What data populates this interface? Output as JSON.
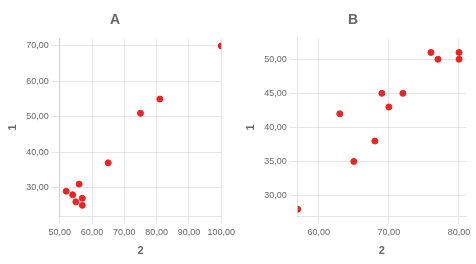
{
  "chart_data": [
    {
      "type": "scatter",
      "title": "A",
      "x": [
        52,
        54,
        55,
        56,
        57,
        57,
        65,
        75,
        81,
        100
      ],
      "y": [
        29,
        28,
        26,
        31,
        27,
        25,
        37,
        51,
        55,
        70
      ],
      "xlim": [
        50,
        100
      ],
      "ylim": [
        22,
        72
      ],
      "xticks": [
        {
          "value": 50,
          "label": "50,00"
        },
        {
          "value": 60,
          "label": "60,00"
        },
        {
          "value": 70,
          "label": "70,00"
        },
        {
          "value": 80,
          "label": "80,00"
        },
        {
          "value": 90,
          "label": "90,00"
        },
        {
          "value": 100,
          "label": "100,00"
        }
      ],
      "yticks": [
        {
          "value": 30,
          "label": "30,00"
        },
        {
          "value": 40,
          "label": "40,00"
        },
        {
          "value": 50,
          "label": "50,00"
        },
        {
          "value": 60,
          "label": "60,00"
        },
        {
          "value": 70,
          "label": "70,00"
        }
      ],
      "xlabel": "2",
      "ylabel": "1",
      "color": "#ee2222",
      "grid": true
    },
    {
      "type": "scatter",
      "title": "B",
      "x": [
        57,
        63,
        65,
        68,
        69,
        70,
        72,
        76,
        77,
        80,
        80
      ],
      "y": [
        28,
        42,
        35,
        38,
        45,
        43,
        45,
        51,
        50,
        50,
        51
      ],
      "xlim": [
        57,
        81
      ],
      "ylim": [
        27,
        53
      ],
      "xticks": [
        {
          "value": 60,
          "label": "60,00"
        },
        {
          "value": 70,
          "label": "70,00"
        },
        {
          "value": 80,
          "label": "80,00"
        }
      ],
      "yticks": [
        {
          "value": 30,
          "label": "30,00"
        },
        {
          "value": 35,
          "label": "35,00"
        },
        {
          "value": 40,
          "label": "40,00"
        },
        {
          "value": 45,
          "label": "45,00"
        },
        {
          "value": 50,
          "label": "50,00"
        }
      ],
      "xlabel": "2",
      "ylabel": "1",
      "color": "#ee2222",
      "grid": true
    }
  ]
}
